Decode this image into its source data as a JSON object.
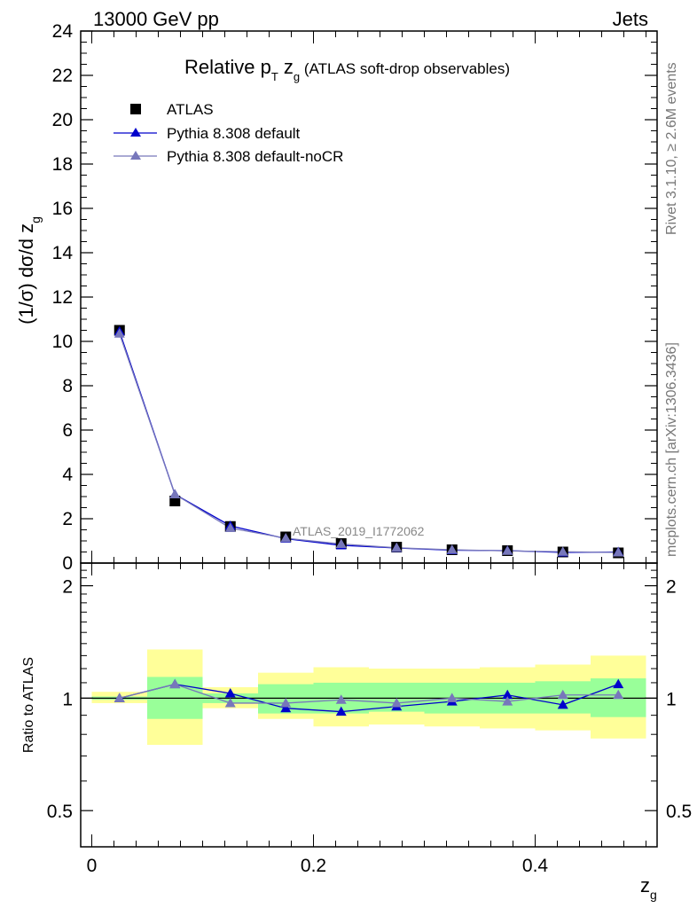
{
  "header": {
    "left": "13000 GeV pp",
    "right": "Jets"
  },
  "side_labels": {
    "rivet": "Rivet 3.1.10, ≥ 2.6M events",
    "mcplots": "mcplots.cern.ch [arXiv:1306.3436]"
  },
  "reference": "ATLAS_2019_I1772062",
  "colors": {
    "atlas": "#000000",
    "default": "#0000cc",
    "nocr": "#7777bb",
    "band_inner": "#99ff99",
    "band_outer": "#ffff99"
  },
  "chart_data": [
    {
      "type": "line",
      "title": "Relative p_T z_g (ATLAS soft-drop observables)",
      "title_parts": {
        "main": "Relative p",
        "sub1": "T",
        "mid": " z",
        "sub2": "g",
        "tail": " (ATLAS soft-drop observables)"
      },
      "xlabel": "z_g",
      "ylabel": "(1/σ) dσ/d z_g",
      "ylabel_parts": {
        "main": "(1/σ) dσ/d z",
        "sub": "g"
      },
      "xlim": [
        -0.01,
        0.51
      ],
      "ylim": [
        0,
        24
      ],
      "y_ticks": [
        0,
        2,
        4,
        6,
        8,
        10,
        12,
        14,
        16,
        18,
        20,
        22,
        24
      ],
      "y_tick_labels": [
        "0",
        "2",
        "4",
        "6",
        "8",
        "10",
        "12",
        "14",
        "16",
        "18",
        "20",
        "22",
        "24"
      ],
      "legend_position": "top-left",
      "x": [
        0.025,
        0.075,
        0.125,
        0.175,
        0.225,
        0.275,
        0.325,
        0.375,
        0.425,
        0.475
      ],
      "series": [
        {
          "name": "ATLAS",
          "marker": "square",
          "values": [
            10.5,
            2.8,
            1.65,
            1.18,
            0.88,
            0.72,
            0.6,
            0.56,
            0.5,
            0.46
          ]
        },
        {
          "name": "Pythia 8.308 default",
          "marker": "triangle",
          "values": [
            10.45,
            3.1,
            1.68,
            1.1,
            0.8,
            0.68,
            0.58,
            0.56,
            0.48,
            0.5
          ]
        },
        {
          "name": "Pythia 8.308 default-noCR",
          "marker": "triangle",
          "values": [
            10.35,
            3.1,
            1.58,
            1.12,
            0.86,
            0.69,
            0.6,
            0.55,
            0.51,
            0.48
          ]
        }
      ]
    },
    {
      "type": "line",
      "ylabel": "Ratio to ATLAS",
      "xlabel": "z_g",
      "xlabel_parts": {
        "main": "z",
        "sub": "g"
      },
      "xlim": [
        -0.01,
        0.51
      ],
      "ylim": [
        0.4,
        2.3
      ],
      "log_y": true,
      "y_ticks": [
        0.5,
        1,
        2
      ],
      "y_tick_labels": [
        "0.5",
        "1",
        "2"
      ],
      "x_ticks": [
        0,
        0.2,
        0.4
      ],
      "x_tick_labels": [
        "0",
        "0.2",
        "0.4"
      ],
      "x": [
        0.025,
        0.075,
        0.125,
        0.175,
        0.225,
        0.275,
        0.325,
        0.375,
        0.425,
        0.475
      ],
      "bands": {
        "inner": [
          [
            0.99,
            1.01
          ],
          [
            0.88,
            1.14
          ],
          [
            0.97,
            1.03
          ],
          [
            0.91,
            1.09
          ],
          [
            0.91,
            1.1
          ],
          [
            0.92,
            1.1
          ],
          [
            0.91,
            1.1
          ],
          [
            0.91,
            1.1
          ],
          [
            0.91,
            1.11
          ],
          [
            0.89,
            1.13
          ]
        ],
        "outer": [
          [
            0.97,
            1.04
          ],
          [
            0.75,
            1.35
          ],
          [
            0.94,
            1.07
          ],
          [
            0.88,
            1.17
          ],
          [
            0.84,
            1.21
          ],
          [
            0.85,
            1.2
          ],
          [
            0.84,
            1.2
          ],
          [
            0.83,
            1.21
          ],
          [
            0.82,
            1.23
          ],
          [
            0.78,
            1.3
          ]
        ]
      },
      "series": [
        {
          "name": "Pythia 8.308 default",
          "values": [
            1.0,
            1.09,
            1.03,
            0.94,
            0.92,
            0.95,
            0.98,
            1.02,
            0.96,
            1.09
          ]
        },
        {
          "name": "Pythia 8.308 default-noCR",
          "values": [
            1.0,
            1.09,
            0.97,
            0.97,
            0.99,
            0.97,
            1.0,
            0.98,
            1.02,
            1.02
          ]
        }
      ]
    }
  ]
}
